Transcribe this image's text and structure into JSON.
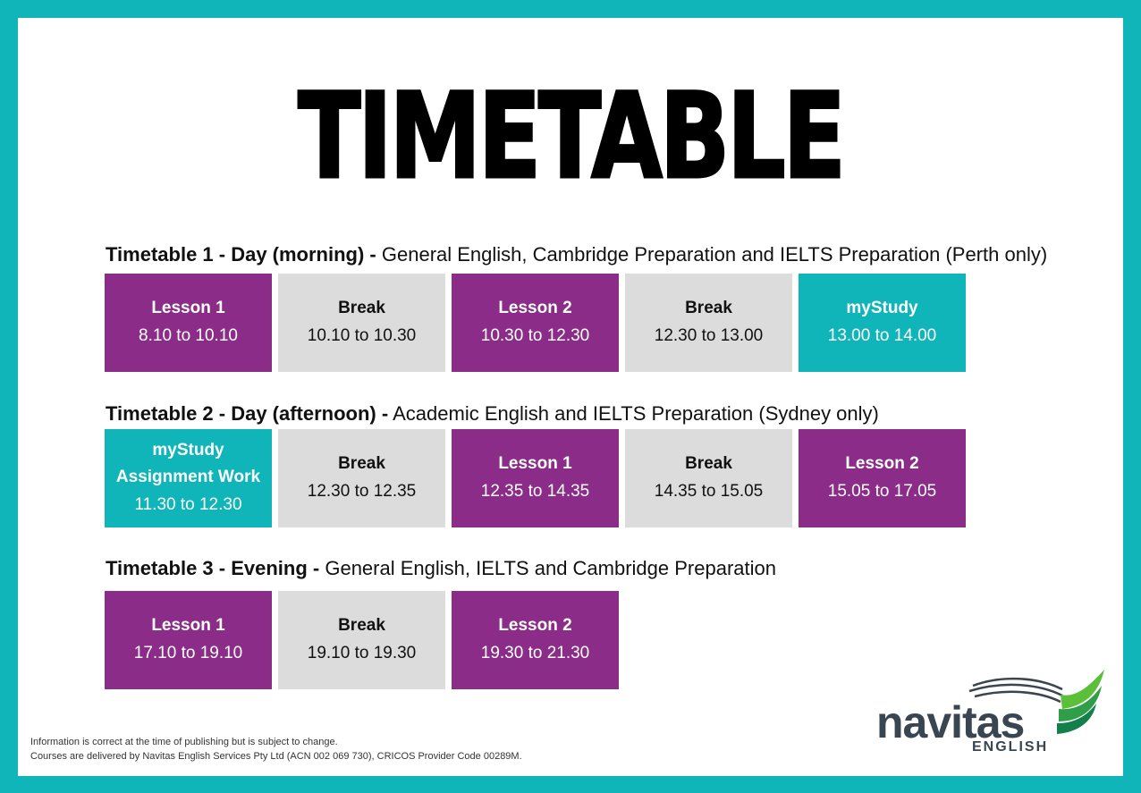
{
  "title": "TIMETABLE",
  "sections": [
    {
      "heading_bold": "Timetable 1 - Day (morning) -",
      "heading_rest": "General English, Cambridge Preparation and IELTS Preparation (Perth only)",
      "cells": [
        {
          "name": "Lesson 1",
          "time": "8.10 to 10.10"
        },
        {
          "name": "Break",
          "time": "10.10 to 10.30"
        },
        {
          "name": "Lesson 2",
          "time": "10.30 to 12.30"
        },
        {
          "name": "Break",
          "time": "12.30 to 13.00"
        },
        {
          "name": "myStudy",
          "time": "13.00 to 14.00"
        }
      ]
    },
    {
      "heading_bold": "Timetable 2 - Day (afternoon) -",
      "heading_rest": "Academic English and IELTS Preparation (Sydney only)",
      "cells": [
        {
          "name": "myStudy",
          "name2": "Assignment Work",
          "time": "11.30 to 12.30"
        },
        {
          "name": "Break",
          "time": "12.30 to 12.35"
        },
        {
          "name": "Lesson 1",
          "time": "12.35 to 14.35"
        },
        {
          "name": "Break",
          "time": "14.35 to 15.05"
        },
        {
          "name": "Lesson 2",
          "time": "15.05 to 17.05"
        }
      ]
    },
    {
      "heading_bold": "Timetable 3 - Evening -",
      "heading_rest": "General English, IELTS and Cambridge Preparation",
      "cells": [
        {
          "name": "Lesson 1",
          "time": "17.10 to 19.10"
        },
        {
          "name": "Break",
          "time": "19.10 to 19.30"
        },
        {
          "name": "Lesson 2",
          "time": "19.30 to 21.30"
        }
      ]
    }
  ],
  "footer": {
    "line1": "Information is correct at the time of publishing but is subject to change.",
    "line2": "Courses are delivered by Navitas English Services Pty Ltd (ACN 002 069 730), CRICOS Provider Code 00289M."
  },
  "logo": {
    "word": "navitas",
    "sub": "ENGLISH"
  },
  "colors": {
    "frame": "#0fb5b8",
    "lesson": "#8b2d88",
    "break": "#dcdcdc",
    "mystudy": "#0fb5b8",
    "logo_text": "#3a4552",
    "logo_green": "#5bbf3a"
  }
}
